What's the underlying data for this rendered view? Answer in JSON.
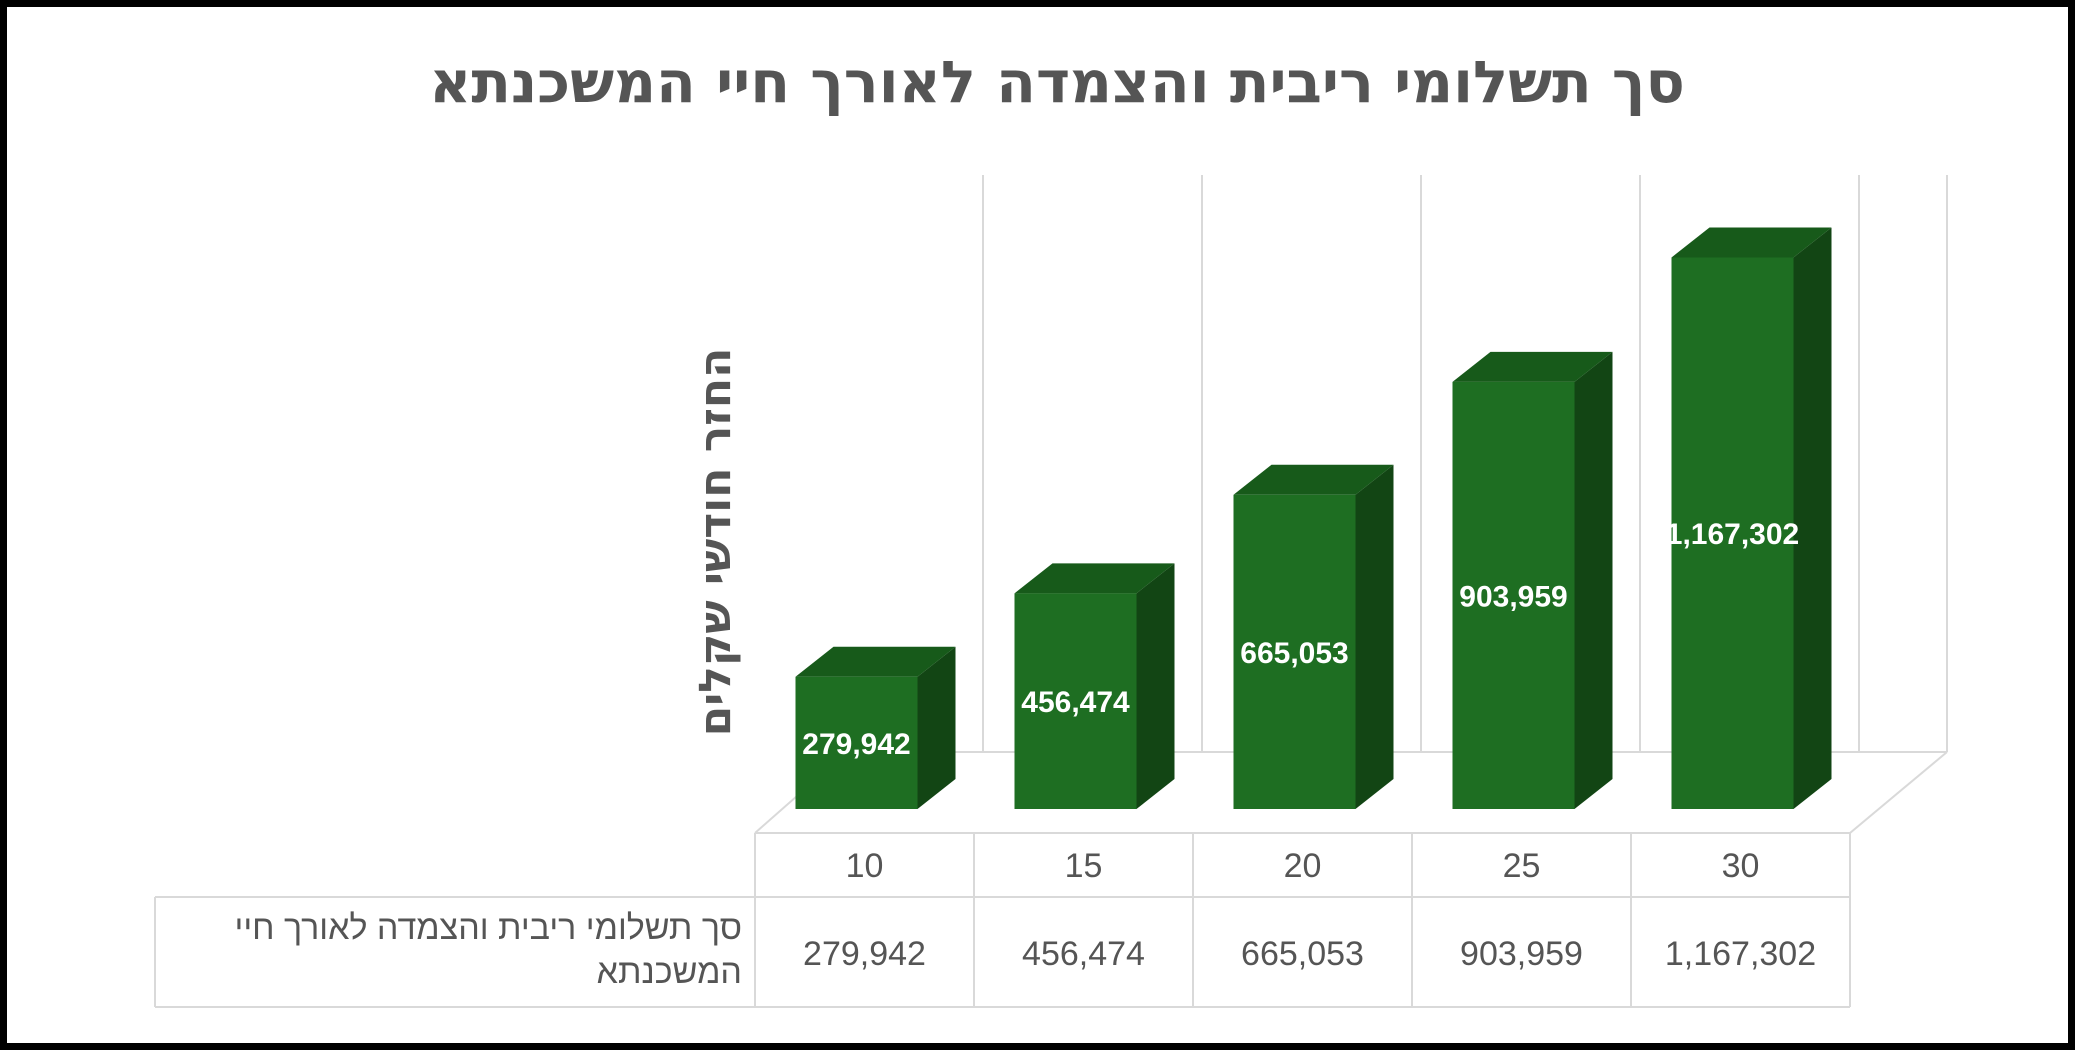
{
  "chart_data": {
    "type": "bar",
    "title": "סך תשלומי ריבית והצמדה לאורך חיי המשכנתא",
    "ylabel": "החזר חודשי שקלים",
    "xlabel": "",
    "categories": [
      "10",
      "15",
      "20",
      "25",
      "30"
    ],
    "series": [
      {
        "name": "סך תשלומי ריבית והצמדה לאורך חיי המשכנתא",
        "values": [
          279942,
          456474,
          665053,
          903959,
          1167302
        ]
      }
    ],
    "data_labels": [
      "279,942",
      "456,474",
      "665,053",
      "903,959",
      "1,167,302"
    ],
    "table_series_label_lines": [
      "סך תשלומי ריבית והצמדה לאורך חיי",
      "המשכנתא"
    ],
    "ylim": [
      0,
      1200000
    ],
    "grid": true,
    "style": "3d-column",
    "legend": "data-table",
    "colors": {
      "front": "#1e6e22",
      "side": "#124514",
      "top": "#175a1a",
      "text": "#555555",
      "grid": "#d9d9d9"
    }
  }
}
